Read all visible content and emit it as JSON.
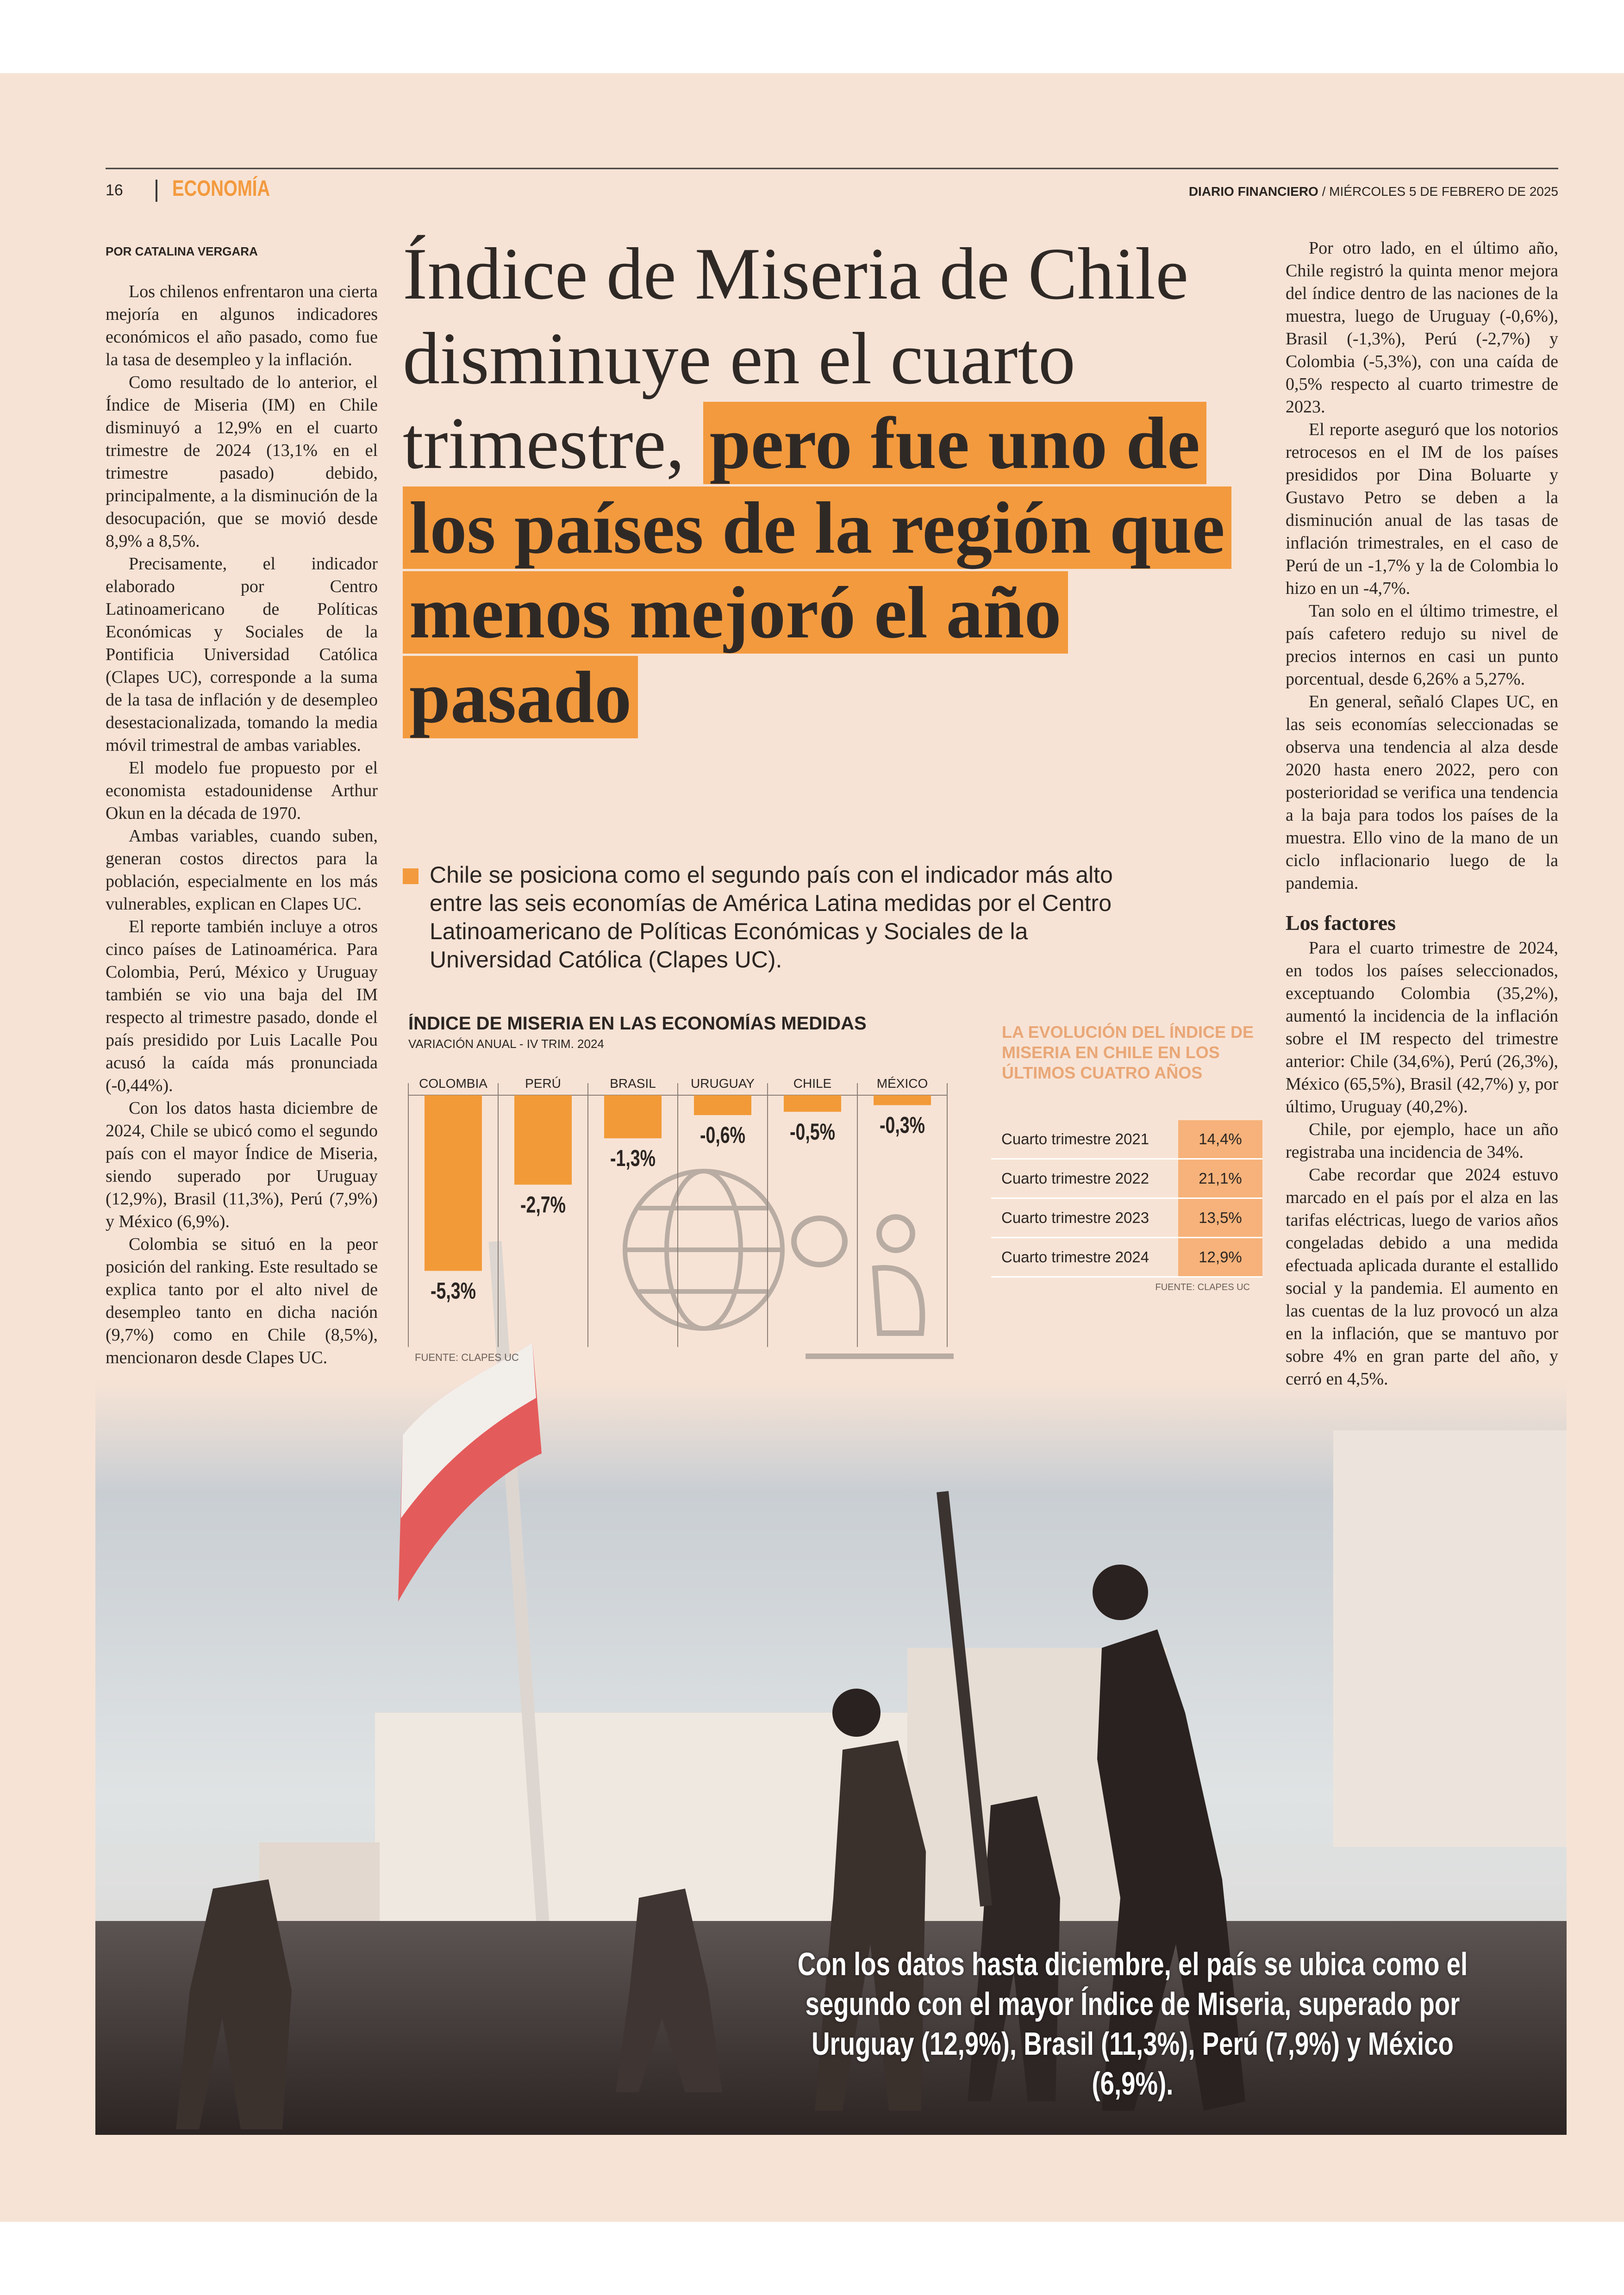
{
  "header": {
    "page_number": "16",
    "section": "ECONOMÍA",
    "publication": "DIARIO FINANCIERO",
    "date": "/ MIÉRCOLES 5 DE FEBRERO DE 2025"
  },
  "byline": "POR CATALINA VERGARA",
  "headline": {
    "text": "Índice de Miseria de Chile disminuye en el cuarto trimestre,",
    "highlight": "pero fue uno de los países de la región que menos mejoró el año pasado"
  },
  "subtitle": "Chile se posiciona como el segundo país con el indicador más alto entre las seis economías de América Latina medidas por el Centro Latinoamericano de Políticas Económicas y Sociales de la Universidad Católica (Clapes UC).",
  "left_column": {
    "paragraphs": [
      "Los chilenos enfrentaron una cierta mejoría en algunos indicadores económicos el año pasado, como fue la tasa de desempleo y la inflación.",
      "Como resultado de lo anterior, el Índice de Miseria (IM) en Chile disminuyó a 12,9% en el cuarto trimestre de 2024 (13,1% en el trimestre pasado) debido, principalmente, a la disminución de la desocupación, que se movió desde 8,9% a 8,5%.",
      "Precisamente, el indicador elaborado por Centro Latinoamericano de Políticas Económicas y Sociales de la Pontificia Universidad Católica (Clapes UC), corresponde a la suma de la tasa de inflación y de desempleo desestacionalizada, tomando la media móvil trimestral de ambas variables.",
      "El modelo fue propuesto por el economista estadounidense Arthur Okun en la década de 1970.",
      "Ambas variables, cuando suben, generan costos directos para la población, especialmente en los más vulnerables, explican en Clapes UC.",
      "El reporte también incluye a otros cinco países de Latinoamérica. Para Colombia, Perú, México y Uruguay también se vio una baja del IM respecto al trimestre pasado, donde el país presidido por Luis Lacalle Pou acusó la caída más pronunciada (-0,44%).",
      "Con los datos hasta diciembre de 2024, Chile se ubicó como el segundo país con el mayor Índice de Miseria, siendo superado por Uruguay (12,9%), Brasil (11,3%), Perú (7,9%) y México (6,9%).",
      "Colombia se situó en la peor posición del ranking. Este resultado se explica tanto por el alto nivel de desempleo tanto en dicha nación (9,7%) como en Chile (8,5%), mencionaron desde Clapes UC."
    ]
  },
  "right_column": {
    "paragraphs": [
      "Por otro lado, en el último año, Chile registró la quinta menor mejora del índice dentro de las naciones de la muestra, luego de Uruguay (-0,6%), Brasil (-1,3%), Perú (-2,7%) y Colombia (-5,3%), con una caída de 0,5% respecto al cuarto trimestre de 2023.",
      "El reporte aseguró que los notorios retrocesos en el IM de los países presididos por Dina Boluarte y Gustavo Petro se deben a la disminución anual de las tasas de inflación trimestrales, en el caso de Perú de un -1,7% y la de Colombia lo hizo en un -4,7%.",
      "Tan solo en el último trimestre, el país cafetero redujo su nivel de precios internos en casi un punto porcentual, desde 6,26% a 5,27%.",
      "En general, señaló Clapes UC, en las seis economías seleccionadas se observa una tendencia al alza desde 2020 hasta enero 2022, pero con posterioridad se verifica una tendencia a la baja para todos los países de la muestra. Ello vino de la mano de un ciclo inflacionario luego de la pandemia."
    ],
    "section": {
      "heading": "Los factores",
      "paragraphs": [
        "Para el cuarto trimestre de 2024, en todos los países seleccionados, exceptuando Colombia (35,2%), aumentó la incidencia de la inflación sobre el IM respecto del trimestre anterior: Chile (34,6%), Perú (26,3%), México (65,5%), Brasil (42,7%) y, por último, Uruguay (40,2%).",
        "Chile, por ejemplo, hace un año registraba una incidencia de 34%.",
        "Cabe recordar que 2024 estuvo marcado en el país por el alza en las tarifas eléctricas, luego de varios años congeladas debido a una medida efectuada aplicada durante el estallido social y la pandemia. El aumento en las cuentas de la luz provocó un alza en la inflación, que se mantuvo por sobre 4% en gran parte del año, y cerró en 4,5%."
      ]
    }
  },
  "chart": {
    "type": "bar",
    "title": "ÍNDICE DE MISERIA EN LAS ECONOMÍAS MEDIDAS",
    "subtitle": "VARIACIÓN ANUAL - IV TRIM. 2024",
    "categories": [
      "COLOMBIA",
      "PERÚ",
      "BRASIL",
      "URUGUAY",
      "CHILE",
      "MÉXICO"
    ],
    "values": [
      -5.3,
      -2.7,
      -1.3,
      -0.6,
      -0.5,
      -0.3
    ],
    "value_labels": [
      "-5,3%",
      "-2,7%",
      "-1,3%",
      "-0,6%",
      "-0,5%",
      "-0,3%"
    ],
    "color": "#f29a38",
    "source": "FUENTE: CLAPES UC"
  },
  "table": {
    "title": "LA EVOLUCIÓN DEL ÍNDICE DE MISERIA EN CHILE EN LOS ÚLTIMOS CUATRO AÑOS",
    "rows": [
      [
        "Cuarto trimestre 2021",
        "14,4%"
      ],
      [
        "Cuarto trimestre 2022",
        "21,1%"
      ],
      [
        "Cuarto trimestre 2023",
        "13,5%"
      ],
      [
        "Cuarto trimestre 2024",
        "12,9%"
      ]
    ],
    "source": "FUENTE: CLAPES UC"
  },
  "photo_caption": "Con los datos hasta diciembre, el país se ubica como el segundo con el mayor Índice de Miseria, superado por Uruguay (12,9%), Brasil (11,3%), Perú (7,9%) y México (6,9%)."
}
